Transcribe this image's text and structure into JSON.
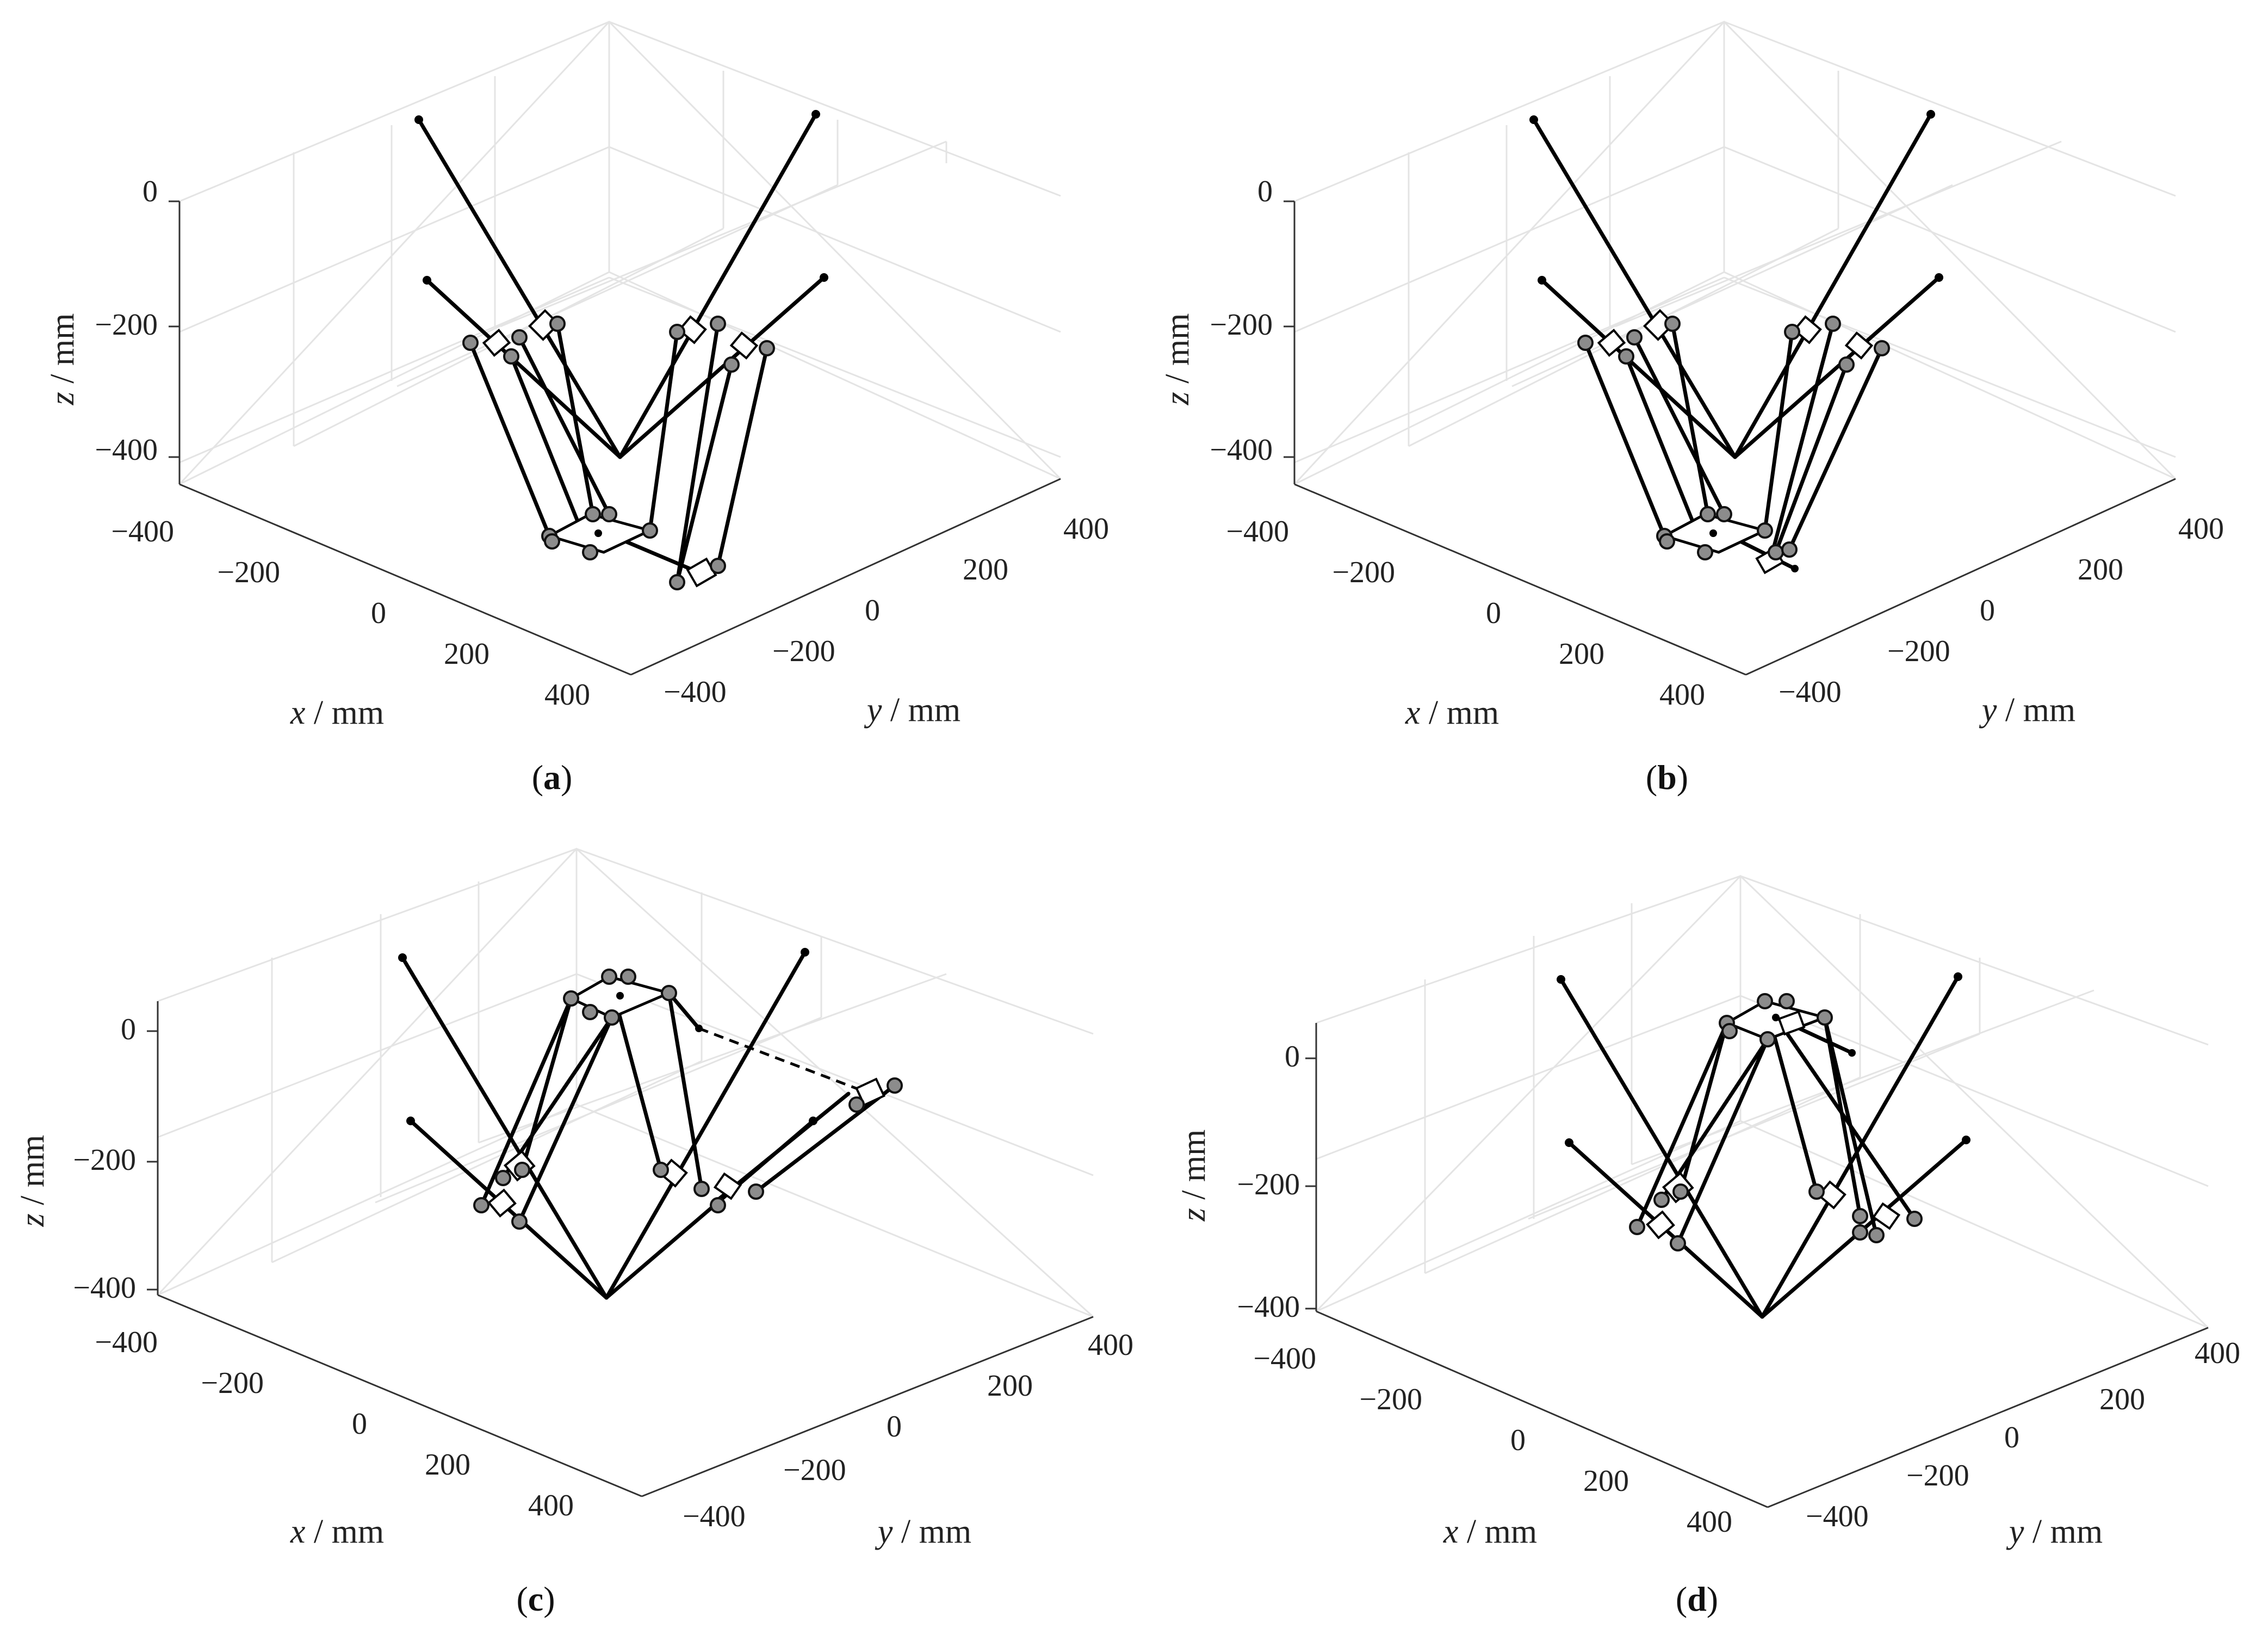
{
  "figure": {
    "panels": [
      {
        "id": "a",
        "caption_letter": "a",
        "z_axis": {
          "title_var": "z",
          "title_unit": " / mm",
          "ticks": [
            "0",
            "−200",
            "−400"
          ]
        },
        "x_axis": {
          "title_var": "x",
          "title_unit": " / mm",
          "ticks": [
            "−400",
            "−200",
            "0",
            "200",
            "400"
          ]
        },
        "y_axis": {
          "title_var": "y",
          "title_unit": " / mm",
          "ticks": [
            "−400",
            "−200",
            "0",
            "200",
            "400"
          ]
        }
      },
      {
        "id": "b",
        "caption_letter": "b",
        "z_axis": {
          "title_var": "z",
          "title_unit": " / mm",
          "ticks": [
            "0",
            "−200",
            "−400"
          ]
        },
        "x_axis": {
          "title_var": "x",
          "title_unit": " / mm",
          "ticks": [
            "−400",
            "−200",
            "0",
            "200",
            "400"
          ]
        },
        "y_axis": {
          "title_var": "y",
          "title_unit": " / mm",
          "ticks": [
            "−400",
            "−200",
            "0",
            "200",
            "400"
          ]
        }
      },
      {
        "id": "c",
        "caption_letter": "c",
        "z_axis": {
          "title_var": "z",
          "title_unit": " / mm",
          "ticks": [
            "0",
            "−200",
            "−400"
          ]
        },
        "x_axis": {
          "title_var": "x",
          "title_unit": " / mm",
          "ticks": [
            "−400",
            "−200",
            "0",
            "200",
            "400"
          ]
        },
        "y_axis": {
          "title_var": "y",
          "title_unit": " / mm",
          "ticks": [
            "−400",
            "−200",
            "0",
            "200",
            "400"
          ]
        }
      },
      {
        "id": "d",
        "caption_letter": "d",
        "z_axis": {
          "title_var": "z",
          "title_unit": " / mm",
          "ticks": [
            "0",
            "−200",
            "−400"
          ]
        },
        "x_axis": {
          "title_var": "x",
          "title_unit": " / mm",
          "ticks": [
            "−400",
            "−200",
            "0",
            "200",
            "400"
          ]
        },
        "y_axis": {
          "title_var": "y",
          "title_unit": " / mm",
          "ticks": [
            "−400",
            "−200",
            "0",
            "200",
            "400"
          ]
        }
      }
    ]
  }
}
